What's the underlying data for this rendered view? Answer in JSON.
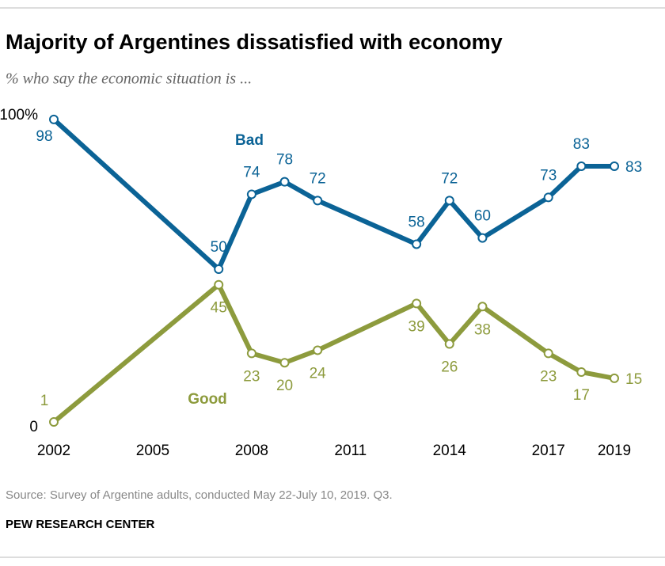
{
  "chart_data": {
    "type": "line",
    "title": "Majority of Argentines dissatisfied with economy",
    "subtitle": "% who say the economic situation is ...",
    "source": "Source: Survey of Argentine adults, conducted May 22-July 10, 2019. Q3.",
    "footer": "PEW RESEARCH CENTER",
    "x": [
      2002,
      2007,
      2008,
      2009,
      2010,
      2013,
      2014,
      2015,
      2017,
      2018,
      2019
    ],
    "series": [
      {
        "name": "Bad",
        "color": "#0b6396",
        "values": [
          98,
          50,
          74,
          78,
          72,
          58,
          72,
          60,
          73,
          83,
          83
        ]
      },
      {
        "name": "Good",
        "color": "#8d9b3d",
        "values": [
          1,
          45,
          23,
          20,
          24,
          39,
          26,
          38,
          23,
          17,
          15
        ]
      }
    ],
    "xlim": [
      2002,
      2019
    ],
    "xticks": [
      2002,
      2005,
      2008,
      2011,
      2014,
      2017,
      2019
    ],
    "ylim": [
      0,
      100
    ],
    "yticks": [
      0,
      {
        "value": 100,
        "label": "100%"
      }
    ],
    "grid": false
  }
}
